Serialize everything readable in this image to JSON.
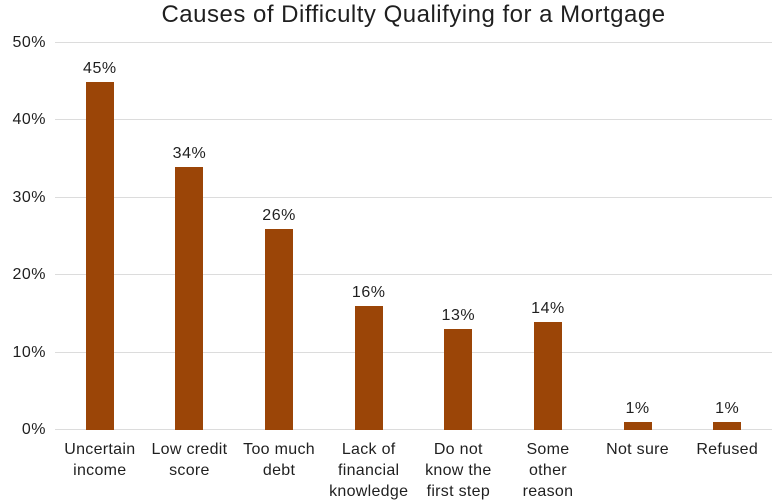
{
  "chart_data": {
    "type": "bar",
    "title": "Causes of Difficulty Qualifying for a Mortgage",
    "categories": [
      "Uncertain income",
      "Low credit score",
      "Too much debt",
      "Lack of financial knowledge",
      "Do not know the first step",
      "Some other reason",
      "Not sure",
      "Refused"
    ],
    "tick_labels": [
      "Uncertain\nincome",
      "Low credit\nscore",
      "Too much\ndebt",
      "Lack of\nfinancial\nknowledge",
      "Do not\nknow the\nfirst step",
      "Some\nother\nreason",
      "Not sure",
      "Refused"
    ],
    "values": [
      45,
      34,
      26,
      16,
      13,
      14,
      1,
      1
    ],
    "value_labels": [
      "45%",
      "34%",
      "26%",
      "16%",
      "13%",
      "14%",
      "1%",
      "1%"
    ],
    "yticks": [
      "0%",
      "10%",
      "20%",
      "30%",
      "40%",
      "50%"
    ],
    "ylim": [
      0,
      50
    ],
    "ytick_step": 10,
    "grid": true,
    "legend": false,
    "xlabel": "",
    "ylabel": "",
    "colors": {
      "bar": "#9B4507",
      "gridline": "#DCDCDC",
      "text": "#1F1F1F",
      "background": "#FFFFFF"
    }
  }
}
